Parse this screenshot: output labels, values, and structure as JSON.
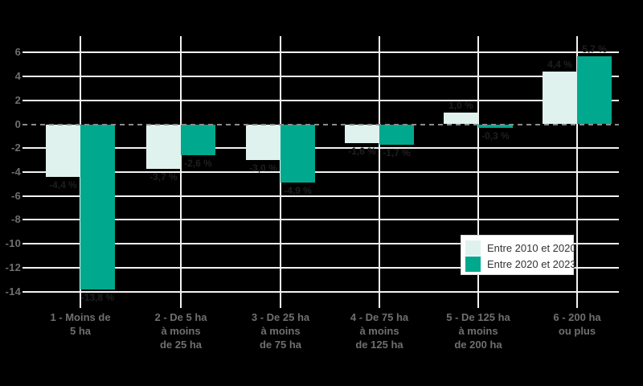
{
  "chart_data": {
    "type": "bar",
    "title": "",
    "xlabel": "",
    "ylabel": "",
    "unit": "%",
    "categories": [
      {
        "id": "1",
        "lines": [
          "1 - Moins de",
          "5 ha"
        ]
      },
      {
        "id": "2",
        "lines": [
          "2 - De 5 ha",
          "à moins",
          "de 25 ha"
        ]
      },
      {
        "id": "3",
        "lines": [
          "3 - De 25 ha",
          "à moins",
          "de 75 ha"
        ]
      },
      {
        "id": "4",
        "lines": [
          "4 - De 75 ha",
          "à moins",
          "de 125 ha"
        ]
      },
      {
        "id": "5",
        "lines": [
          "5 - De 125 ha",
          "à moins",
          "de 200 ha"
        ]
      },
      {
        "id": "6",
        "lines": [
          "6 - 200 ha",
          "ou plus"
        ]
      }
    ],
    "series": [
      {
        "name": "Entre 2010 et 2020",
        "color": "#e0f2ee",
        "values": [
          -4.4,
          -3.7,
          -3.0,
          -1.6,
          1.0,
          4.4
        ],
        "labels": [
          "-4,4 %",
          "-3,7 %",
          "-3,0 %",
          "-1,6 %",
          "1,0 %",
          "4,4 %"
        ]
      },
      {
        "name": "Entre 2020 et 2023",
        "color": "#00a88d",
        "values": [
          -13.8,
          -2.6,
          -4.9,
          -1.7,
          -0.3,
          5.7
        ],
        "labels": [
          "-13,8 %",
          "-2,6 %",
          "-4,9 %",
          "-1,7 %",
          "-0,3 %",
          "5,7 %"
        ]
      }
    ],
    "y_ticks": [
      6,
      4,
      2,
      0,
      -2,
      -4,
      -6,
      -8,
      -10,
      -12,
      -14
    ],
    "ylim": [
      -14,
      7.4
    ],
    "grid": true,
    "zero_line_style": "dashed",
    "legend_position": "inside-right-middle"
  },
  "colors": {
    "background": "#000000",
    "gridline": "#f2f2f2",
    "zero_line": "#8c8c8c",
    "axis_text": "#6f6f6f",
    "bar_label_text": "#1f1f1f",
    "legend_background": "#ffffff",
    "legend_border": "#d8d8d8",
    "legend_text": "#333333"
  }
}
